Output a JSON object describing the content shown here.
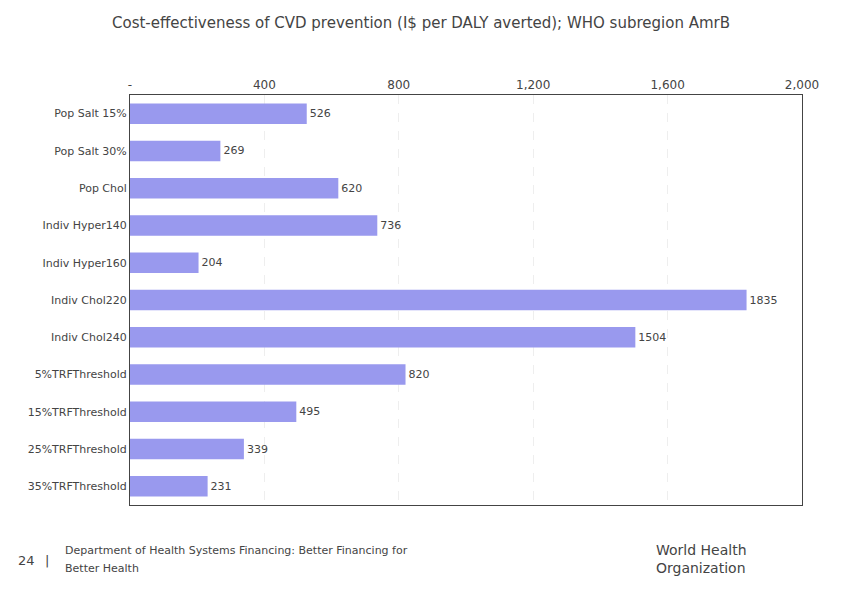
{
  "chart_data": {
    "type": "bar",
    "orientation": "horizontal",
    "title": "Cost-effectiveness of CVD prevention (I$ per DALY averted); WHO subregion AmrB",
    "categories": [
      "Pop Salt 15%",
      "Pop Salt 30%",
      "Pop Chol",
      "Indiv Hyper140",
      "Indiv Hyper160",
      "Indiv Chol220",
      "Indiv Chol240",
      "5%TRFThreshold",
      "15%TRFThreshold",
      "25%TRFThreshold",
      "35%TRFThreshold"
    ],
    "values": [
      526,
      269,
      620,
      736,
      204,
      1835,
      1504,
      820,
      495,
      339,
      231
    ],
    "color": "#9999ee",
    "xlim": [
      0,
      2000
    ],
    "xticks": [
      {
        "value": 0,
        "label": "-"
      },
      400,
      800,
      {
        "value": 1200,
        "label": "1,200"
      },
      {
        "value": 1600,
        "label": "1,600"
      },
      {
        "value": 2000,
        "label": "2,000"
      }
    ],
    "grid": true,
    "data_labels": true,
    "annotations": [
      "24",
      "|",
      "Department of Health Systems Financing: Better Financing for",
      "Better Health",
      "World Health",
      "Organization"
    ]
  }
}
